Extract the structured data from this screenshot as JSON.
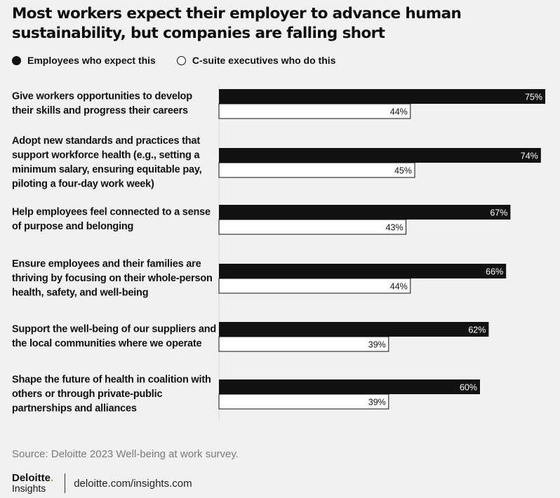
{
  "title": "Most workers expect their employer to advance human sustainability, but companies are falling short",
  "legend": {
    "employees": "Employees who expect this",
    "executives": "C-suite executives who do this"
  },
  "chart_data": {
    "type": "bar",
    "orientation": "horizontal",
    "categories": [
      "Give workers opportunities to develop their skills and progress their careers",
      "Adopt new standards and practices that support workforce health (e.g., setting a minimum salary, ensuring equitable pay, piloting a four-day work week)",
      "Help employees feel connected to a sense of purpose and belonging",
      "Ensure employees and their families are thriving by focusing on their whole-person health, safety, and well-being",
      "Support the well-being of our suppliers and the local communities where we operate",
      "Shape the future of health in coalition with others or through private-public partnerships and alliances"
    ],
    "category_lines": [
      [
        "Give workers opportunities to develop",
        "their skills and progress their careers"
      ],
      [
        "Adopt new standards and practices that",
        "support workforce health (e.g., setting a",
        "minimum salary, ensuring equitable pay,",
        "piloting a four-day work week)"
      ],
      [
        "Help employees feel connected to a sense",
        "of purpose and belonging"
      ],
      [
        "Ensure employees and their families are",
        "thriving by focusing on their whole-person",
        "health, safety, and well-being"
      ],
      [
        "Support the well-being of our suppliers and",
        "the local communities where we operate"
      ],
      [
        "Shape the future of health in coalition with",
        "others or through private-public",
        "partnerships and alliances"
      ]
    ],
    "series": [
      {
        "name": "Employees who expect this",
        "values": [
          75,
          74,
          67,
          66,
          62,
          60
        ],
        "labels": [
          "75%",
          "74%",
          "67%",
          "66%",
          "62%",
          "60%"
        ],
        "color": "#111111"
      },
      {
        "name": "C-suite executives who do this",
        "values": [
          44,
          45,
          43,
          44,
          39,
          39
        ],
        "labels": [
          "44%",
          "45%",
          "43%",
          "44%",
          "39%",
          "39%"
        ],
        "color": "#ffffff"
      }
    ],
    "xlim": [
      0,
      100
    ],
    "grid": false,
    "legend_position": "top-left"
  },
  "source": "Source: Deloitte 2023 Well-being at work survey.",
  "footer": {
    "brand_top": "Deloitte",
    "brand_dot": ".",
    "brand_bottom": "Insights",
    "url": "deloitte.com/insights.com"
  }
}
